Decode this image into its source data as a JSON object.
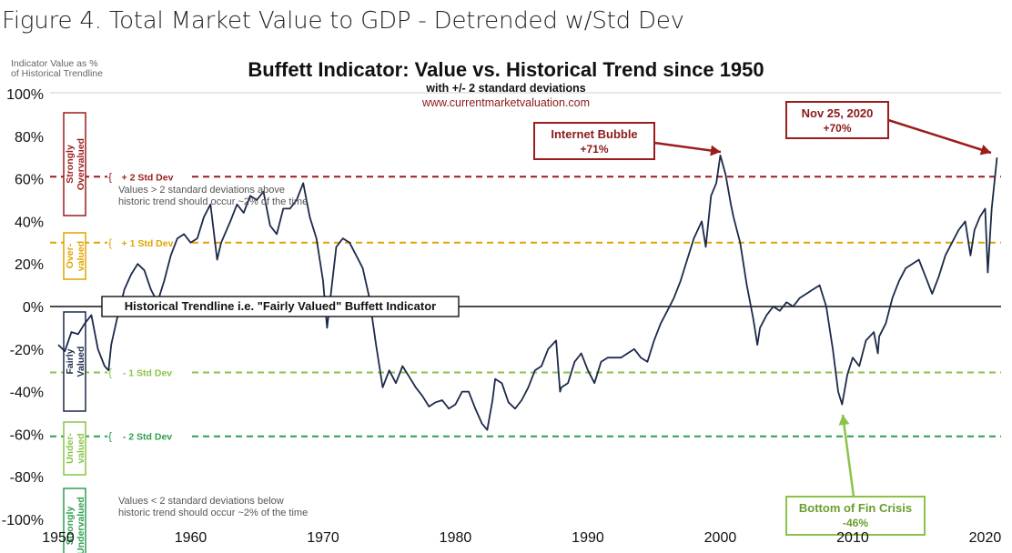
{
  "figure_caption": "Figure 4. Total Market Value to GDP - Detrended w/Std Dev",
  "colors": {
    "plus2": "#9b1c1c",
    "plus1": "#e0a400",
    "minus1": "#8bc34a",
    "minus2": "#2e9e4f",
    "line": "#1c2a4a",
    "arrow_red": "#9b1c1c",
    "arrow_green": "#8bc34a"
  },
  "chart_data": {
    "type": "line",
    "title": "Buffett Indicator: Value vs. Historical Trend since 1950",
    "subtitle": "with +/- 2 standard deviations",
    "source": "www.currentmarketvaluation.com",
    "ylabel": "Indicator Value as % of Historical Trendline",
    "xlim": [
      1950,
      2021
    ],
    "ylim": [
      -100,
      100
    ],
    "yticks": [
      "100%",
      "80%",
      "60%",
      "40%",
      "20%",
      "0%",
      "-20%",
      "-40%",
      "-60%",
      "-80%",
      "-100%"
    ],
    "xticks": [
      "1950",
      "1960",
      "1970",
      "1980",
      "1990",
      "2000",
      "2010",
      "2020"
    ],
    "std_lines": [
      {
        "label": "+ 2 Std Dev",
        "value": 61,
        "color": "plus2"
      },
      {
        "label": "+ 1 Std Dev",
        "value": 30,
        "color": "plus1"
      },
      {
        "label": "- 1 Std Dev",
        "value": -31,
        "color": "minus1"
      },
      {
        "label": "- 2 Std Dev",
        "value": -61,
        "color": "minus2"
      }
    ],
    "zones": [
      {
        "label": "Strongly Overvalued",
        "color": "plus2"
      },
      {
        "label": "Over-valued",
        "color": "plus1"
      },
      {
        "label": "Fairly Valued",
        "color": "line"
      },
      {
        "label": "Under-valued",
        "color": "minus1"
      },
      {
        "label": "Strongly Undervalued",
        "color": "minus2"
      }
    ],
    "trendline_label": "Historical Trendline i.e. \"Fairly Valued\" Buffett Indicator",
    "notes": [
      "Values > 2 standard deviations above historic trend should occur ~2% of the time",
      "Values < 2 standard deviations below historic trend should occur ~2% of the time"
    ],
    "annotations": [
      {
        "label": "Internet Bubble",
        "value": "+71%",
        "x": 2000.3,
        "y": 71
      },
      {
        "label": "Nov 25, 2020",
        "value": "+70%",
        "x": 2020.9,
        "y": 70
      },
      {
        "label": "Bottom of Fin Crisis",
        "value": "-46%",
        "x": 2009.2,
        "y": -46
      }
    ],
    "series": [
      {
        "values": [
          [
            1950,
            -18
          ],
          [
            1950.5,
            -21
          ],
          [
            1951,
            -12
          ],
          [
            1951.5,
            -13
          ],
          [
            1952,
            -8
          ],
          [
            1952.5,
            -4
          ],
          [
            1953,
            -20
          ],
          [
            1953.5,
            -28
          ],
          [
            1953.8,
            -30
          ],
          [
            1954,
            -18
          ],
          [
            1954.5,
            -4
          ],
          [
            1955,
            8
          ],
          [
            1955.5,
            15
          ],
          [
            1956,
            20
          ],
          [
            1956.5,
            17
          ],
          [
            1957,
            8
          ],
          [
            1957.5,
            2
          ],
          [
            1958,
            12
          ],
          [
            1958.5,
            24
          ],
          [
            1959,
            32
          ],
          [
            1959.5,
            34
          ],
          [
            1960,
            30
          ],
          [
            1960.5,
            32
          ],
          [
            1961,
            42
          ],
          [
            1961.5,
            48
          ],
          [
            1962,
            22
          ],
          [
            1962.3,
            30
          ],
          [
            1963,
            40
          ],
          [
            1963.5,
            48
          ],
          [
            1964,
            44
          ],
          [
            1964.5,
            52
          ],
          [
            1965,
            50
          ],
          [
            1965.5,
            54
          ],
          [
            1966,
            38
          ],
          [
            1966.5,
            34
          ],
          [
            1967,
            46
          ],
          [
            1967.5,
            46
          ],
          [
            1968,
            50
          ],
          [
            1968.5,
            58
          ],
          [
            1969,
            42
          ],
          [
            1969.5,
            32
          ],
          [
            1970,
            12
          ],
          [
            1970.3,
            -10
          ],
          [
            1970.7,
            12
          ],
          [
            1971,
            28
          ],
          [
            1971.5,
            32
          ],
          [
            1972,
            30
          ],
          [
            1972.5,
            24
          ],
          [
            1973,
            18
          ],
          [
            1973.5,
            4
          ],
          [
            1974,
            -18
          ],
          [
            1974.5,
            -38
          ],
          [
            1975,
            -30
          ],
          [
            1975.5,
            -36
          ],
          [
            1976,
            -28
          ],
          [
            1976.5,
            -33
          ],
          [
            1977,
            -38
          ],
          [
            1977.5,
            -42
          ],
          [
            1978,
            -47
          ],
          [
            1978.5,
            -45
          ],
          [
            1979,
            -44
          ],
          [
            1979.5,
            -48
          ],
          [
            1980,
            -46
          ],
          [
            1980.5,
            -40
          ],
          [
            1981,
            -40
          ],
          [
            1981.5,
            -48
          ],
          [
            1982,
            -55
          ],
          [
            1982.4,
            -58
          ],
          [
            1982.8,
            -44
          ],
          [
            1983,
            -34
          ],
          [
            1983.5,
            -36
          ],
          [
            1984,
            -45
          ],
          [
            1984.5,
            -48
          ],
          [
            1985,
            -44
          ],
          [
            1985.5,
            -38
          ],
          [
            1986,
            -30
          ],
          [
            1986.5,
            -28
          ],
          [
            1987,
            -20
          ],
          [
            1987.6,
            -16
          ],
          [
            1987.9,
            -40
          ],
          [
            1988,
            -38
          ],
          [
            1988.5,
            -36
          ],
          [
            1989,
            -26
          ],
          [
            1989.5,
            -22
          ],
          [
            1990,
            -30
          ],
          [
            1990.5,
            -36
          ],
          [
            1991,
            -26
          ],
          [
            1991.5,
            -24
          ],
          [
            1992,
            -24
          ],
          [
            1992.5,
            -24
          ],
          [
            1993,
            -22
          ],
          [
            1993.5,
            -20
          ],
          [
            1994,
            -24
          ],
          [
            1994.5,
            -26
          ],
          [
            1995,
            -16
          ],
          [
            1995.5,
            -8
          ],
          [
            1996,
            -2
          ],
          [
            1996.5,
            4
          ],
          [
            1997,
            12
          ],
          [
            1997.5,
            22
          ],
          [
            1998,
            32
          ],
          [
            1998.6,
            40
          ],
          [
            1998.9,
            28
          ],
          [
            1999.3,
            52
          ],
          [
            1999.7,
            58
          ],
          [
            2000,
            71
          ],
          [
            2000.4,
            62
          ],
          [
            2000.8,
            48
          ],
          [
            2001,
            42
          ],
          [
            2001.5,
            30
          ],
          [
            2002,
            10
          ],
          [
            2002.5,
            -6
          ],
          [
            2002.8,
            -18
          ],
          [
            2003,
            -10
          ],
          [
            2003.5,
            -4
          ],
          [
            2004,
            0
          ],
          [
            2004.5,
            -2
          ],
          [
            2005,
            2
          ],
          [
            2005.5,
            0
          ],
          [
            2006,
            4
          ],
          [
            2006.5,
            6
          ],
          [
            2007,
            8
          ],
          [
            2007.5,
            10
          ],
          [
            2008,
            0
          ],
          [
            2008.5,
            -20
          ],
          [
            2008.9,
            -40
          ],
          [
            2009.2,
            -46
          ],
          [
            2009.6,
            -32
          ],
          [
            2010,
            -24
          ],
          [
            2010.5,
            -28
          ],
          [
            2011,
            -16
          ],
          [
            2011.6,
            -12
          ],
          [
            2011.9,
            -22
          ],
          [
            2012,
            -14
          ],
          [
            2012.5,
            -8
          ],
          [
            2013,
            4
          ],
          [
            2013.5,
            12
          ],
          [
            2014,
            18
          ],
          [
            2014.5,
            20
          ],
          [
            2015,
            22
          ],
          [
            2015.5,
            14
          ],
          [
            2016,
            6
          ],
          [
            2016.5,
            14
          ],
          [
            2017,
            24
          ],
          [
            2017.5,
            30
          ],
          [
            2018,
            36
          ],
          [
            2018.5,
            40
          ],
          [
            2018.9,
            24
          ],
          [
            2019.2,
            36
          ],
          [
            2019.6,
            42
          ],
          [
            2020,
            46
          ],
          [
            2020.2,
            16
          ],
          [
            2020.5,
            46
          ],
          [
            2020.9,
            70
          ]
        ]
      }
    ]
  }
}
